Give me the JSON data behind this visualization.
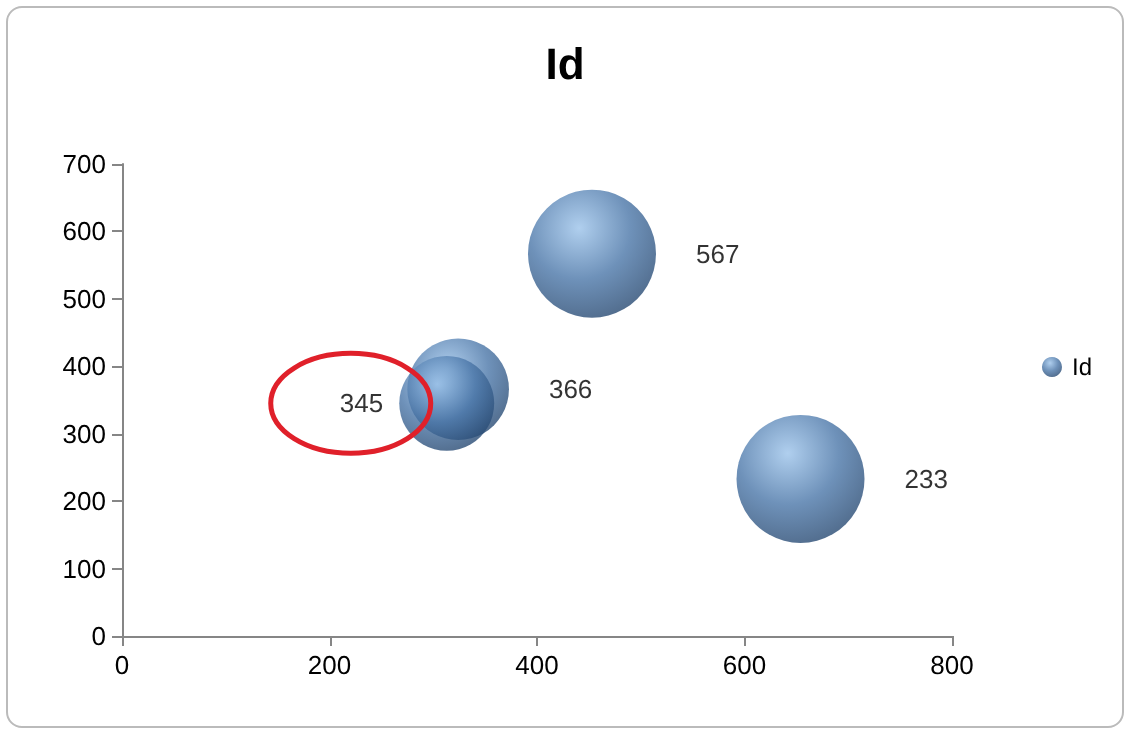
{
  "chart_data": {
    "type": "bubble",
    "title": "Id",
    "x": [
      324,
      313,
      453,
      654
    ],
    "series": [
      {
        "name": "Id",
        "color": "#4a76a8",
        "values": [
          366,
          345,
          567,
          233
        ],
        "sizes": [
          0.63,
          0.55,
          1,
          1
        ]
      }
    ],
    "data_labels": true,
    "xlim": [
      0,
      800
    ],
    "xticks": [
      0,
      200,
      400,
      600,
      800
    ],
    "ylim": [
      0,
      700
    ],
    "yticks": [
      0,
      100,
      200,
      300,
      400,
      500,
      600,
      700
    ],
    "grid": false,
    "legend": "right"
  }
}
